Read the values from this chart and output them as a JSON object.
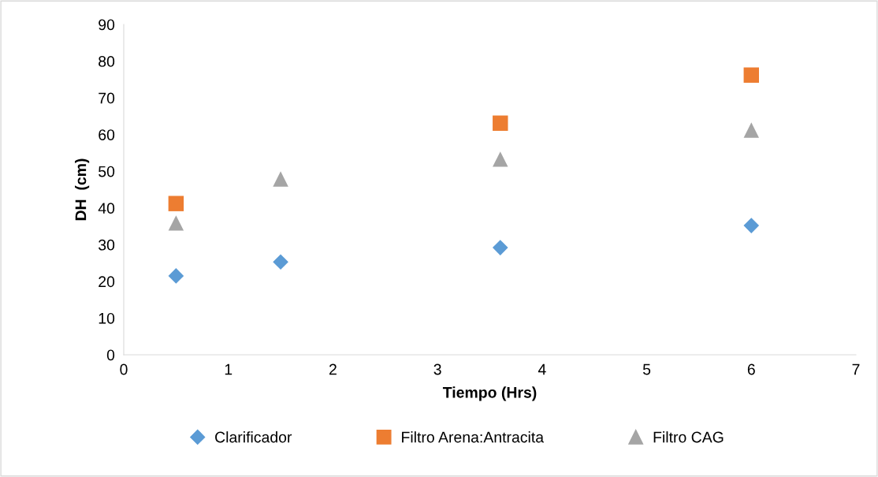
{
  "chart_data": {
    "type": "scatter",
    "xlabel": "Tiempo (Hrs)",
    "ylabel": "DH  (cm)",
    "x": [
      0.5,
      1.5,
      3.6,
      6
    ],
    "series": [
      {
        "name": "Clarificador",
        "color": "#5b9bd5",
        "marker": "diamond",
        "values": [
          21.5,
          25.3,
          29.2,
          35.2
        ]
      },
      {
        "name": "Filtro Arena:Antracita",
        "color": "#ed7d31",
        "marker": "square",
        "values": [
          41.2,
          null,
          63.1,
          76.2
        ]
      },
      {
        "name": "Filtro CAG",
        "color": "#a5a5a5",
        "marker": "triangle",
        "values": [
          35.9,
          47.9,
          53.3,
          61.2
        ]
      }
    ],
    "xlim": [
      0,
      7
    ],
    "xticks": [
      0,
      1,
      2,
      3,
      4,
      5,
      6,
      7
    ],
    "ylim": [
      0,
      90
    ],
    "yticks": [
      0,
      10,
      20,
      30,
      40,
      50,
      60,
      70,
      80,
      90
    ],
    "grid": false,
    "legend": "bottom"
  }
}
